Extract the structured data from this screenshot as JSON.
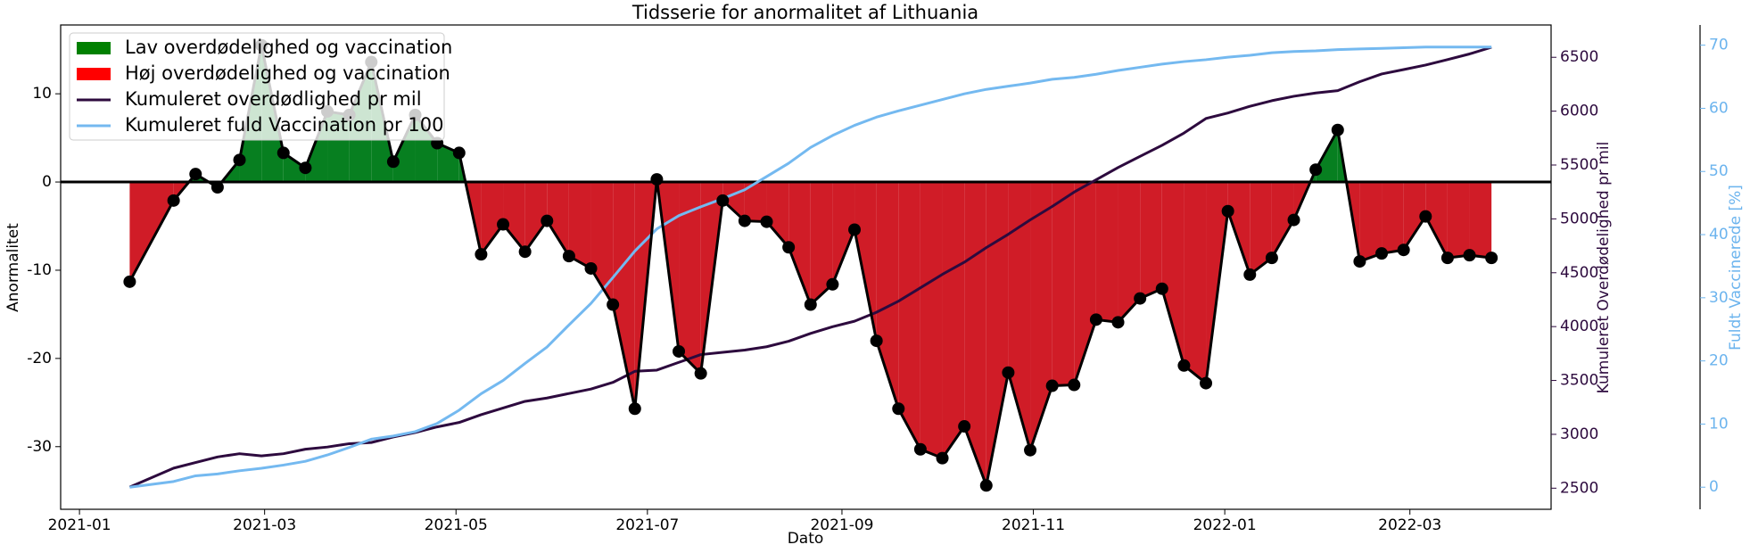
{
  "chart_data": {
    "type": "line",
    "title": "Tidsserie for anormalitet af Lithuania",
    "xlabel": "Dato",
    "ylabel": "Anormalitet",
    "y2label": "Kumuleret Overdødelighed pr mil",
    "y3label": "Fuldt Vaccinerede [%]",
    "y2color": "#2d0a3e",
    "y3color": "#6cb4ee",
    "x": [
      "2021-01-17",
      "2021-01-31",
      "2021-02-07",
      "2021-02-14",
      "2021-02-21",
      "2021-02-28",
      "2021-03-07",
      "2021-03-14",
      "2021-03-21",
      "2021-03-28",
      "2021-04-04",
      "2021-04-11",
      "2021-04-18",
      "2021-04-25",
      "2021-05-02",
      "2021-05-09",
      "2021-05-16",
      "2021-05-23",
      "2021-05-30",
      "2021-06-06",
      "2021-06-13",
      "2021-06-20",
      "2021-06-27",
      "2021-07-04",
      "2021-07-11",
      "2021-07-18",
      "2021-07-25",
      "2021-08-01",
      "2021-08-08",
      "2021-08-15",
      "2021-08-22",
      "2021-08-29",
      "2021-09-05",
      "2021-09-12",
      "2021-09-19",
      "2021-09-26",
      "2021-10-03",
      "2021-10-10",
      "2021-10-17",
      "2021-10-24",
      "2021-10-31",
      "2021-11-07",
      "2021-11-14",
      "2021-11-21",
      "2021-11-28",
      "2021-12-05",
      "2021-12-12",
      "2021-12-19",
      "2021-12-26",
      "2022-01-02",
      "2022-01-09",
      "2022-01-16",
      "2022-01-23",
      "2022-01-30",
      "2022-02-06",
      "2022-02-13",
      "2022-02-20",
      "2022-02-27",
      "2022-03-06",
      "2022-03-13",
      "2022-03-20",
      "2022-03-27"
    ],
    "xlim": [
      "2020-12-26",
      "2022-04-15"
    ],
    "xticks": [
      "2021-01",
      "2021-03",
      "2021-05",
      "2021-07",
      "2021-09",
      "2021-11",
      "2022-01",
      "2022-03"
    ],
    "ylim": [
      -37.1,
      17.8
    ],
    "yticks": [
      -30,
      -20,
      -10,
      0,
      10
    ],
    "y2lim": [
      2304,
      6800
    ],
    "y2ticks": [
      2500,
      3000,
      3500,
      4000,
      4500,
      5000,
      5500,
      6000,
      6500
    ],
    "y3lim": [
      -3.5,
      73.2
    ],
    "y3ticks": [
      0,
      10,
      20,
      30,
      40,
      50,
      60,
      70
    ],
    "fill_legend": [
      {
        "name": "Lav overdødelighed og vaccination",
        "color": "#077f20"
      },
      {
        "name": "Høj overdødelighed og vaccination",
        "color": "#d01c27"
      }
    ],
    "legend_swatch_colors": [
      "#008000",
      "#ff0000"
    ],
    "anomaly": {
      "color": "#000000",
      "axis": "y",
      "values": [
        -11.3,
        -2.1,
        0.9,
        -0.6,
        2.5,
        15.5,
        3.3,
        1.6,
        8.0,
        7.6,
        13.6,
        2.3,
        7.6,
        4.4,
        3.3,
        -8.2,
        -4.8,
        -7.9,
        -4.4,
        -8.4,
        -9.8,
        -13.9,
        -25.7,
        0.3,
        -19.2,
        -21.7,
        -2.1,
        -4.4,
        -4.5,
        -7.4,
        -13.9,
        -11.6,
        -5.4,
        -18.0,
        -25.7,
        -30.3,
        -31.3,
        -27.7,
        -34.4,
        -21.6,
        -30.4,
        -23.1,
        -23.0,
        -15.6,
        -15.9,
        -13.2,
        -12.1,
        -20.8,
        -22.8,
        -3.3,
        -10.5,
        -8.6,
        -4.3,
        1.4,
        5.9,
        -9.0,
        -8.1,
        -7.7,
        -3.9,
        -8.6,
        -8.3,
        -8.6
      ]
    },
    "series": [
      {
        "name": "Kumuleret overdødlighed pr mil",
        "color": "#2d0a3e",
        "axis": "y2",
        "values": [
          2510,
          2686,
          2738,
          2790,
          2820,
          2800,
          2820,
          2862,
          2882,
          2913,
          2924,
          2975,
          3017,
          3069,
          3110,
          3182,
          3244,
          3306,
          3337,
          3379,
          3420,
          3482,
          3585,
          3596,
          3668,
          3740,
          3761,
          3782,
          3813,
          3864,
          3937,
          3999,
          4050,
          4133,
          4236,
          4360,
          4485,
          4598,
          4733,
          4857,
          4991,
          5115,
          5249,
          5363,
          5477,
          5580,
          5683,
          5797,
          5932,
          5983,
          6045,
          6097,
          6138,
          6169,
          6190,
          6273,
          6345,
          6386,
          6428,
          6479,
          6531,
          6593
        ]
      },
      {
        "name": "Kumuleret fuld Vaccination pr 100",
        "color": "#74b9f0",
        "axis": "y3",
        "values": [
          0,
          0.9,
          1.8,
          2.1,
          2.6,
          3.0,
          3.5,
          4.1,
          5.1,
          6.3,
          7.6,
          8.1,
          8.8,
          10.1,
          12.2,
          14.8,
          16.9,
          19.6,
          22.2,
          25.7,
          29.1,
          33.2,
          37.4,
          40.9,
          43.0,
          44.4,
          45.7,
          47.1,
          49.2,
          51.3,
          53.8,
          55.7,
          57.3,
          58.6,
          59.6,
          60.5,
          61.4,
          62.3,
          63.0,
          63.5,
          64.0,
          64.6,
          64.9,
          65.4,
          66.0,
          66.5,
          67.0,
          67.4,
          67.7,
          68.1,
          68.4,
          68.8,
          69.0,
          69.1,
          69.3,
          69.4,
          69.5,
          69.6,
          69.7,
          69.7,
          69.7,
          69.7
        ]
      }
    ]
  }
}
